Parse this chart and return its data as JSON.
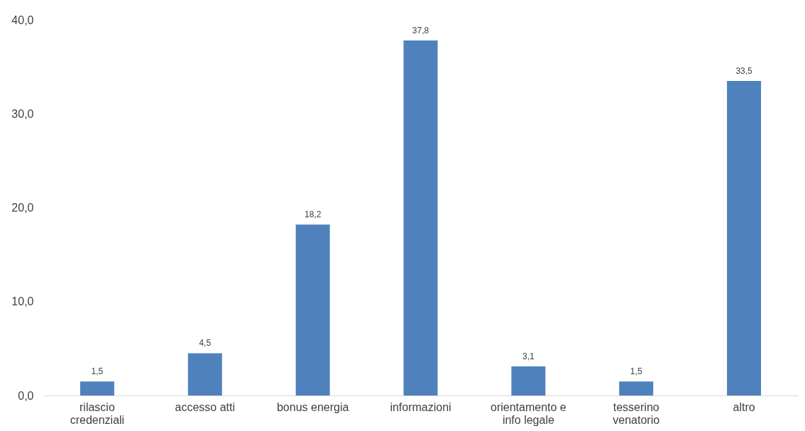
{
  "chart_data": {
    "type": "bar",
    "categories": [
      "rilascio\ncredenziali",
      "accesso atti",
      "bonus energia",
      "informazioni",
      "orientamento e\ninfo legale",
      "tesserino\nvenatorio",
      "altro"
    ],
    "values": [
      1.5,
      4.5,
      18.2,
      37.8,
      3.1,
      1.5,
      33.5
    ],
    "value_labels": [
      "1,5",
      "4,5",
      "18,2",
      "37,8",
      "3,1",
      "1,5",
      "33,5"
    ],
    "color": "#4f81bd",
    "ylim": [
      0,
      40
    ],
    "yticks": [
      {
        "value": 0,
        "label": "0,0"
      },
      {
        "value": 10,
        "label": "10,0"
      },
      {
        "value": 20,
        "label": "20,0"
      },
      {
        "value": 30,
        "label": "30,0"
      },
      {
        "value": 40,
        "label": "40,0"
      }
    ],
    "grid": false
  }
}
